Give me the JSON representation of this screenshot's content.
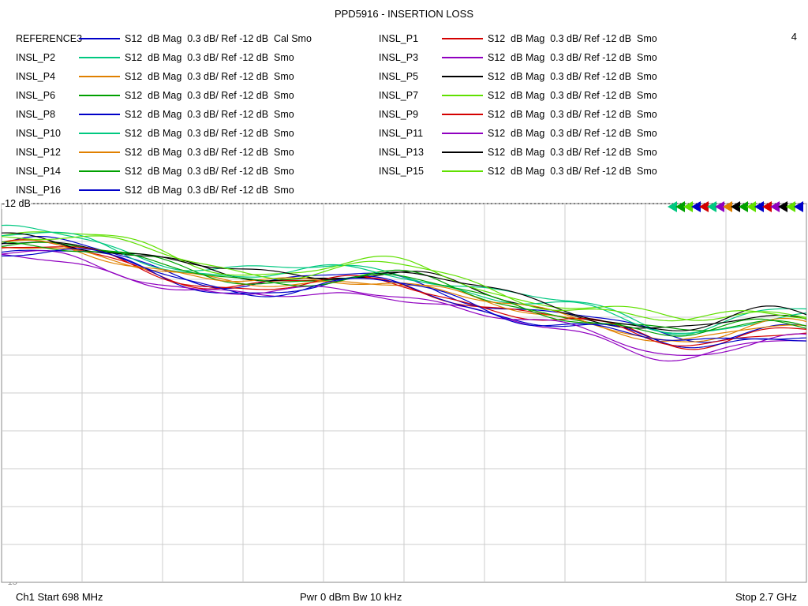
{
  "title": "PPD5916 - INSERTION LOSS",
  "corner_number": "4",
  "ref_label": "-12 dB",
  "footer": {
    "left": "Ch1  Start   698 MHz",
    "mid": "Pwr   0 dBm  Bw   10 kHz",
    "right": "Stop  2.7 GHz"
  },
  "legend": [
    {
      "col": 1,
      "row": 0,
      "name": "REFERENCE3",
      "color": "#0000c8",
      "desc": "S12  dB Mag  0.3 dB/ Ref -12 dB  Cal Smo"
    },
    {
      "col": 2,
      "row": 0,
      "name": "INSL_P1",
      "color": "#d40000",
      "desc": "S12  dB Mag  0.3 dB/ Ref -12 dB  Smo"
    },
    {
      "col": 1,
      "row": 1,
      "name": "INSL_P2",
      "color": "#00c880",
      "desc": "S12  dB Mag  0.3 dB/ Ref -12 dB  Smo"
    },
    {
      "col": 2,
      "row": 1,
      "name": "INSL_P3",
      "color": "#9000c0",
      "desc": "S12  dB Mag  0.3 dB/ Ref -12 dB  Smo"
    },
    {
      "col": 1,
      "row": 2,
      "name": "INSL_P4",
      "color": "#e08000",
      "desc": "S12  dB Mag  0.3 dB/ Ref -12 dB  Smo"
    },
    {
      "col": 2,
      "row": 2,
      "name": "INSL_P5",
      "color": "#000000",
      "desc": "S12  dB Mag  0.3 dB/ Ref -12 dB  Smo"
    },
    {
      "col": 1,
      "row": 3,
      "name": "INSL_P6",
      "color": "#00a000",
      "desc": "S12  dB Mag  0.3 dB/ Ref -12 dB  Smo"
    },
    {
      "col": 2,
      "row": 3,
      "name": "INSL_P7",
      "color": "#60e000",
      "desc": "S12  dB Mag  0.3 dB/ Ref -12 dB  Smo"
    },
    {
      "col": 1,
      "row": 4,
      "name": "INSL_P8",
      "color": "#0000c8",
      "desc": "S12  dB Mag  0.3 dB/ Ref -12 dB  Smo"
    },
    {
      "col": 2,
      "row": 4,
      "name": "INSL_P9",
      "color": "#d40000",
      "desc": "S12  dB Mag  0.3 dB/ Ref -12 dB  Smo"
    },
    {
      "col": 1,
      "row": 5,
      "name": "INSL_P10",
      "color": "#00c880",
      "desc": "S12  dB Mag  0.3 dB/ Ref -12 dB  Smo"
    },
    {
      "col": 2,
      "row": 5,
      "name": "INSL_P11",
      "color": "#9000c0",
      "desc": "S12  dB Mag  0.3 dB/ Ref -12 dB  Smo"
    },
    {
      "col": 1,
      "row": 6,
      "name": "INSL_P12",
      "color": "#e08000",
      "desc": "S12  dB Mag  0.3 dB/ Ref -12 dB  Smo"
    },
    {
      "col": 2,
      "row": 6,
      "name": "INSL_P13",
      "color": "#000000",
      "desc": "S12  dB Mag  0.3 dB/ Ref -12 dB  Smo"
    },
    {
      "col": 1,
      "row": 7,
      "name": "INSL_P14",
      "color": "#00a000",
      "desc": "S12  dB Mag  0.3 dB/ Ref -12 dB  Smo"
    },
    {
      "col": 2,
      "row": 7,
      "name": "INSL_P15",
      "color": "#60e000",
      "desc": "S12  dB Mag  0.3 dB/ Ref -12 dB  Smo"
    },
    {
      "col": 1,
      "row": 8,
      "name": "INSL_P16",
      "color": "#0000c8",
      "desc": "S12  dB Mag  0.3 dB/ Ref -12 dB  Smo"
    }
  ],
  "chart": {
    "type": "line",
    "xlim": [
      698,
      2700
    ],
    "ylim": [
      -15,
      -12
    ],
    "ytick_step": 0.3,
    "yticks": [
      "-12.3",
      "-12.6",
      "-12.9",
      "-13.2",
      "-13.5",
      "-13.8",
      "-14.1",
      "-14.4",
      "-14.7",
      "-15"
    ],
    "xgrid_count": 10,
    "grid_color": "#cccccc",
    "border_color": "#888888",
    "background": "#ffffff",
    "line_width": 1.2,
    "marker_colors": [
      "#0000c8",
      "#60e000",
      "#000000",
      "#9000c0",
      "#d40000",
      "#0000c8",
      "#60e000",
      "#00a000",
      "#000000",
      "#e08000",
      "#9000c0",
      "#00c880",
      "#d40000",
      "#0000c8",
      "#60e000",
      "#00a000",
      "#00c880"
    ],
    "traces": [
      {
        "name": "REFERENCE3",
        "color": "#0000c8",
        "offset": 0.0,
        "amp": 0.04
      },
      {
        "name": "INSL_P1",
        "color": "#d40000",
        "offset": -0.03,
        "amp": 0.04
      },
      {
        "name": "INSL_P2",
        "color": "#00c880",
        "offset": 0.08,
        "amp": 0.05
      },
      {
        "name": "INSL_P3",
        "color": "#9000c0",
        "offset": -0.12,
        "amp": 0.04
      },
      {
        "name": "INSL_P4",
        "color": "#e08000",
        "offset": -0.02,
        "amp": 0.03
      },
      {
        "name": "INSL_P5",
        "color": "#000000",
        "offset": 0.04,
        "amp": 0.05
      },
      {
        "name": "INSL_P6",
        "color": "#00a000",
        "offset": 0.02,
        "amp": 0.04
      },
      {
        "name": "INSL_P7",
        "color": "#60e000",
        "offset": 0.1,
        "amp": 0.05
      },
      {
        "name": "INSL_P8",
        "color": "#0000c8",
        "offset": -0.06,
        "amp": 0.04
      },
      {
        "name": "INSL_P9",
        "color": "#d40000",
        "offset": -0.04,
        "amp": 0.03
      },
      {
        "name": "INSL_P10",
        "color": "#00c880",
        "offset": 0.05,
        "amp": 0.04
      },
      {
        "name": "INSL_P11",
        "color": "#9000c0",
        "offset": -0.1,
        "amp": 0.04
      },
      {
        "name": "INSL_P12",
        "color": "#e08000",
        "offset": -0.01,
        "amp": 0.04
      },
      {
        "name": "INSL_P13",
        "color": "#000000",
        "offset": 0.06,
        "amp": 0.06
      },
      {
        "name": "INSL_P14",
        "color": "#00a000",
        "offset": 0.01,
        "amp": 0.04
      },
      {
        "name": "INSL_P15",
        "color": "#60e000",
        "offset": 0.09,
        "amp": 0.05
      },
      {
        "name": "INSL_P16",
        "color": "#0000c8",
        "offset": -0.05,
        "amp": 0.04
      }
    ]
  }
}
